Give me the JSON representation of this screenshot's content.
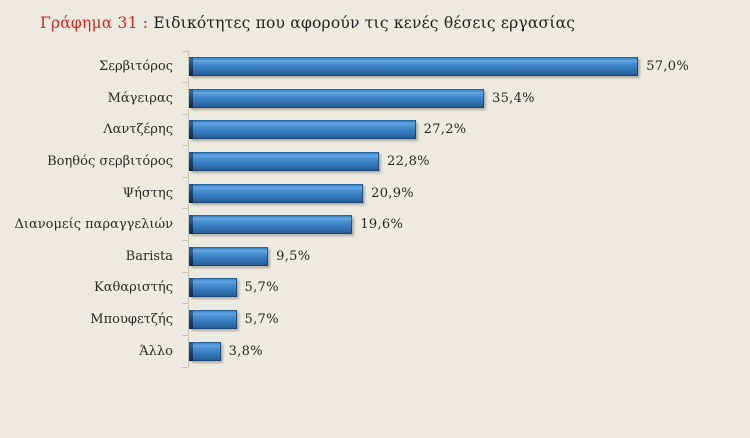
{
  "title": {
    "prefix": "Γράφημα 31 :",
    "text": " Ειδικότητες που αφορούν τις κενές θέσεις εργασίας"
  },
  "chart_data": {
    "type": "bar",
    "orientation": "horizontal",
    "title": "Γράφημα 31 : Ειδικότητες που αφορούν τις κενές θέσεις εργασίας",
    "categories": [
      "Σερβιτόρος",
      "Μάγειρας",
      "Λαντζέρης",
      "Βοηθός σερβιτόρος",
      "Ψήστης",
      "Διανομείς παραγγελιών",
      "Barista",
      "Καθαριστής",
      "Μπουφετζής",
      "Άλλο"
    ],
    "values": [
      57.0,
      35.4,
      27.2,
      22.8,
      20.9,
      19.6,
      9.5,
      5.7,
      5.7,
      3.8
    ],
    "value_labels": [
      "57,0%",
      "35,4%",
      "27,2%",
      "22,8%",
      "20,9%",
      "19,6%",
      "9,5%",
      "5,7%",
      "5,7%",
      "3,8%"
    ],
    "xlabel": "",
    "ylabel": "",
    "xlim": [
      0,
      60
    ],
    "grid": false,
    "legend": null,
    "colors": {
      "bar_main": "#3a80c3",
      "bar_highlight": "#64a6e3",
      "bar_dark_edge": "#173f6e",
      "background": "#edeae0",
      "title_accent": "#d9261f",
      "text": "#262626",
      "axis_line": "#c9c5b8"
    }
  }
}
